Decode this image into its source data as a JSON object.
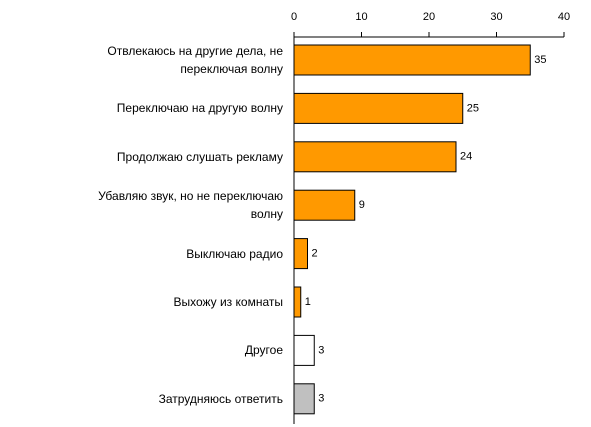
{
  "chart_data": {
    "type": "barh",
    "categories": [
      "Отвлекаюсь на другие дела, не переключая волну",
      "Переключаю на другую волну",
      "Продолжаю слушать рекламу",
      "Убавляю звук, но не переключаю волну",
      "Выключаю радио",
      "Выхожу из комнаты",
      "Другое",
      "Затрудняюсь ответить"
    ],
    "values": [
      35,
      25,
      24,
      9,
      2,
      1,
      3,
      3
    ],
    "colors": [
      "#ff9900",
      "#ff9900",
      "#ff9900",
      "#ff9900",
      "#ff9900",
      "#ff9900",
      "#ffffff",
      "#c0c0c0"
    ],
    "xlim": [
      0,
      40
    ],
    "xticks": [
      0,
      10,
      20,
      30,
      40
    ]
  }
}
